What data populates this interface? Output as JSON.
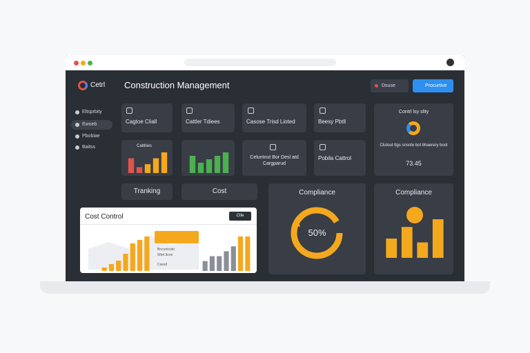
{
  "header": {
    "logo": "Cetrl",
    "title": "Construction Management",
    "buttons": [
      "Dsuse",
      "Procurtive"
    ]
  },
  "sidebar": [
    "Eltsprbity",
    "Ewoeb",
    "Pbobiae",
    "Baitss"
  ],
  "cards": [
    "Cagtoe Cliall",
    "Cattler Tdiees",
    "Casose Trisd Lioted",
    "Beesy Pbtll",
    "Cabbies",
    "Celuntnut Bor Desl atd Cargparud",
    "Pobila Cattrol"
  ],
  "summary": {
    "title": "Contrl lsy slity",
    "text": "Clutout ttgs snsnte bot bhaerery bost",
    "value": "73.45"
  },
  "tabs": [
    "Tranking",
    "Cost"
  ],
  "compliance": [
    {
      "title": "Compliance",
      "value": "50%"
    },
    {
      "title": "Compliance"
    }
  ],
  "cost_control": {
    "title": "Cost Control",
    "button": "Ctle",
    "labels": [
      "Bncuntcotn",
      "Wtet ltcoe",
      "Cassd"
    ]
  },
  "charts": [
    {
      "values": [
        5,
        2,
        3,
        5,
        7
      ],
      "colors": [
        "#e0534a",
        "#e0534a",
        "#f4a81d",
        "#f4a81d",
        "#f4a81d"
      ]
    },
    {
      "values": [
        5,
        3,
        4,
        5,
        6
      ],
      "colors": [
        "#4caf50",
        "#4caf50",
        "#4caf50",
        "#4caf50",
        "#4caf50"
      ]
    },
    {
      "values": [
        1,
        2,
        3,
        5,
        8,
        9,
        10
      ],
      "colors": [
        "#f4a81d",
        "#f4a81d",
        "#f4a81d",
        "#f4a81d",
        "#f4a81d",
        "#f4a81d",
        "#f4a81d"
      ]
    },
    {
      "values": [
        2,
        3,
        3,
        4,
        5,
        7,
        7
      ],
      "colors": [
        "#8a8f98",
        "#8a8f98",
        "#8a8f98",
        "#8a8f98",
        "#8a8f98",
        "#f4a81d",
        "#f4a81d"
      ]
    },
    {
      "values": [
        5,
        8,
        4,
        10
      ],
      "colors": [
        "#f4a81d",
        "#f4a81d",
        "#f4a81d",
        "#f4a81d"
      ]
    }
  ]
}
